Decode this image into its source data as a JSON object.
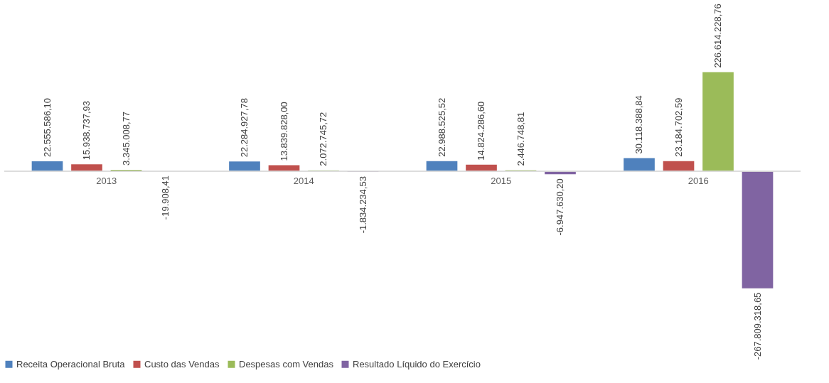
{
  "chart_data": {
    "type": "bar",
    "categories": [
      "2013",
      "2014",
      "2015",
      "2016"
    ],
    "series": [
      {
        "name": "Receita Operacional Bruta",
        "color": "#4f81bd",
        "values": [
          22555586.1,
          22284927.78,
          22988525.52,
          30118388.84
        ],
        "value_labels": [
          "22.555.586,10",
          "22.284.927,78",
          "22.988.525,52",
          "30.118.388,84"
        ]
      },
      {
        "name": "Custo das Vendas",
        "color": "#c0504d",
        "values": [
          15938737.93,
          13839828.0,
          14824286.6,
          23184702.59
        ],
        "value_labels": [
          "15.938.737,93",
          "13.839.828,00",
          "14.824.286,60",
          "23.184.702,59"
        ]
      },
      {
        "name": "Despesas com Vendas",
        "color": "#9bbb59",
        "values": [
          3345008.77,
          2072745.72,
          2446748.81,
          226614228.76
        ],
        "value_labels": [
          "3.345.008,77",
          "2.072.745,72",
          "2.446.748,81",
          "226.614.228,76"
        ]
      },
      {
        "name": "Resultado Líquido do Exercício",
        "color": "#8064a2",
        "values": [
          -19908.41,
          -1834234.53,
          -6947630.2,
          -267809318.65
        ],
        "value_labels": [
          "-19.908,41",
          "-1.834.234,53",
          "-6.947.630,20",
          "-267.809.318,65"
        ]
      }
    ],
    "legend": "bottom",
    "grid": false
  }
}
